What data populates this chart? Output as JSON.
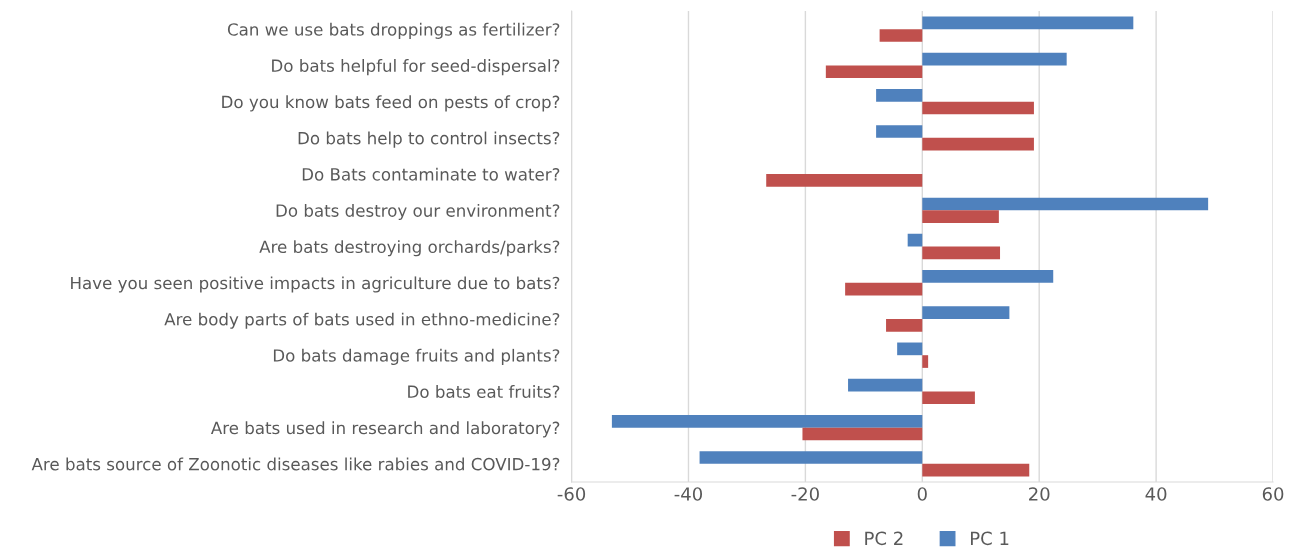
{
  "chart_data": {
    "type": "bar",
    "orientation": "horizontal",
    "categories": [
      "Can we use bats droppings as fertilizer?",
      "Do bats helpful for seed-dispersal?",
      "Do you know bats feed on pests of crop?",
      "Do bats help to control insects?",
      "Do Bats contaminate to water?",
      "Do bats destroy our environment?",
      "Are bats destroying orchards/parks?",
      "Have you seen positive impacts in agriculture due to bats?",
      "Are body parts of bats used in ethno-medicine?",
      "Do bats damage fruits and plants?",
      "Do bats eat fruits?",
      "Are bats used in research and laboratory?",
      "Are bats source of Zoonotic diseases like rabies and COVID-19?"
    ],
    "series": [
      {
        "name": "PC 1",
        "color": "#4f81bd",
        "values": [
          36.1,
          24.7,
          -7.9,
          -7.9,
          null,
          48.9,
          -2.5,
          22.4,
          14.9,
          -4.3,
          -12.7,
          -53.1,
          -38.1
        ]
      },
      {
        "name": "PC 2",
        "color": "#c0504d",
        "values": [
          -7.3,
          -16.5,
          19.1,
          19.1,
          -26.7,
          13.1,
          13.3,
          -13.2,
          -6.2,
          1.0,
          9.0,
          -20.5,
          18.3
        ]
      }
    ],
    "xlim": [
      -60,
      60
    ],
    "xticks": [
      -60,
      -40,
      -20,
      0,
      20,
      40,
      60
    ],
    "grid": "x",
    "legend": "bottom"
  }
}
